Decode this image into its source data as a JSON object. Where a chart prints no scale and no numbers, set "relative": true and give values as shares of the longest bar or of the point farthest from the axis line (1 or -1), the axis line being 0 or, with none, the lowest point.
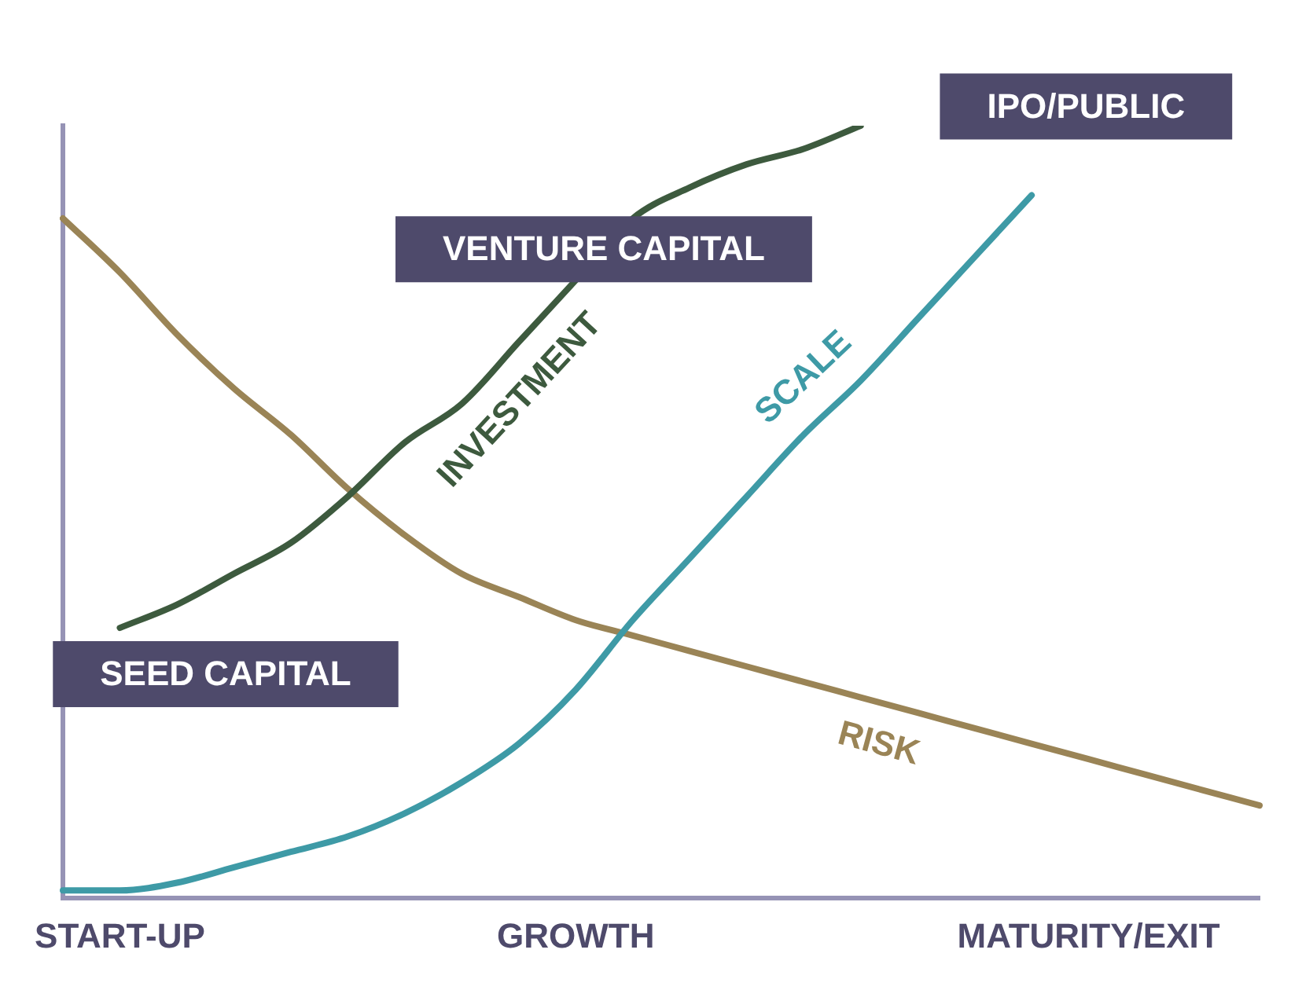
{
  "chart_data": {
    "type": "line",
    "relative": true,
    "categories": [
      null,
      "START-UP",
      null,
      null,
      null,
      null,
      null,
      null,
      null,
      "GROWTH",
      null,
      null,
      null,
      null,
      null,
      null,
      null,
      null,
      "MATURITY/EXIT",
      null,
      null,
      null
    ],
    "series": [
      {
        "name": "INVESTMENT",
        "color": "#3d5a3e",
        "values": [
          null,
          0.35,
          0.38,
          0.42,
          0.46,
          0.52,
          0.59,
          0.64,
          0.72,
          0.8,
          0.88,
          0.92,
          0.95,
          0.97,
          1,
          null,
          null,
          null,
          null,
          null,
          null,
          null
        ]
      },
      {
        "name": "SCALE",
        "color": "#3e9aa6",
        "values": [
          0.01,
          0.01,
          0.02,
          0.04,
          0.06,
          0.08,
          0.11,
          0.15,
          0.2,
          0.27,
          0.36,
          0.44,
          0.52,
          0.6,
          0.67,
          0.75,
          0.83,
          0.91,
          null,
          null,
          null,
          null
        ]
      },
      {
        "name": "RISK",
        "color": "#9a8456",
        "values": [
          0.88,
          0.81,
          0.73,
          0.66,
          0.6,
          0.53,
          0.47,
          0.42,
          0.39,
          0.36,
          0.34,
          0.32,
          0.3,
          0.28,
          0.26,
          0.24,
          0.22,
          0.2,
          0.18,
          0.16,
          0.14,
          0.12
        ]
      }
    ],
    "annotations": [
      "SEED CAPITAL",
      "VENTURE CAPITAL",
      "IPO/PUBLIC"
    ],
    "grid": false,
    "legend": false,
    "marker": "none",
    "line_style": "solid"
  }
}
